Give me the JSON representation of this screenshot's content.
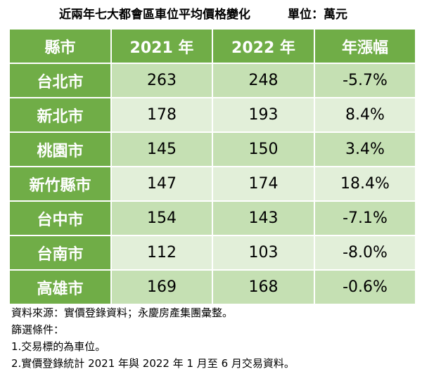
{
  "title": "近兩年七大都會區車位平均價格變化",
  "unit": "單位：萬元",
  "table": {
    "headers": [
      "縣市",
      "2021 年",
      "2022 年",
      "年漲幅"
    ],
    "rows": [
      {
        "city": "台北市",
        "y2021": "263",
        "y2022": "248",
        "change": "-5.7%"
      },
      {
        "city": "新北市",
        "y2021": "178",
        "y2022": "193",
        "change": "8.4%"
      },
      {
        "city": "桃園市",
        "y2021": "145",
        "y2022": "150",
        "change": "3.4%"
      },
      {
        "city": "新竹縣市",
        "y2021": "147",
        "y2022": "174",
        "change": "18.4%"
      },
      {
        "city": "台中市",
        "y2021": "154",
        "y2022": "143",
        "change": "-7.1%"
      },
      {
        "city": "台南市",
        "y2021": "112",
        "y2022": "103",
        "change": "-8.0%"
      },
      {
        "city": "高雄市",
        "y2021": "169",
        "y2022": "168",
        "change": "-0.6%"
      }
    ]
  },
  "notes": [
    "資料來源：實價登錄資料；永慶房產集團彙整。",
    "篩選條件：",
    "1.交易標的為車位。",
    "2.實價登錄統計 2021 年與 2022 年 1 月至 6 月交易資料。"
  ],
  "colors": {
    "header_green": "#70ad47",
    "row_dark": "#c5e0b3",
    "row_light": "#e2efd9"
  }
}
